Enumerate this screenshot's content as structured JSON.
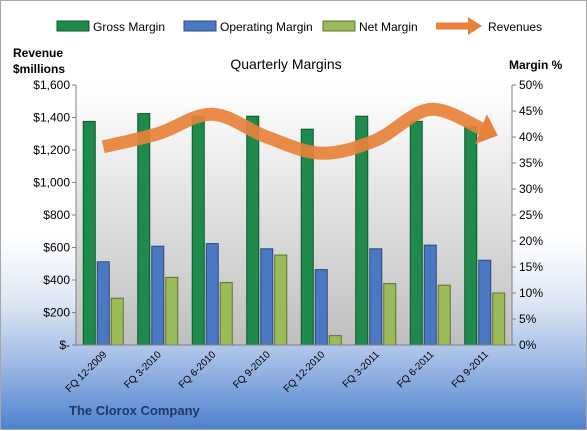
{
  "company": "The Clorox Company",
  "chart_data": {
    "type": "bar",
    "title": "Quarterly Margins",
    "left_axis_label": [
      "Revenue",
      "$millions"
    ],
    "right_axis_label": "Margin %",
    "categories": [
      "FQ 12-2009",
      "FQ 3-2010",
      "FQ 6-2010",
      "FQ 9-2010",
      "FQ 12-2010",
      "FQ 3-2011",
      "FQ 6-2011",
      "FQ 9-2011"
    ],
    "left_ticks": [
      "$-",
      "$200",
      "$400",
      "$600",
      "$800",
      "$1,000",
      "$1,200",
      "$1,400",
      "$1,600"
    ],
    "right_ticks": [
      "0%",
      "5%",
      "10%",
      "15%",
      "20%",
      "25%",
      "30%",
      "35%",
      "40%",
      "45%",
      "50%"
    ],
    "ylim_left": [
      0,
      1600
    ],
    "ylim_right": [
      0,
      50
    ],
    "bar_series": [
      {
        "name": "Gross Margin",
        "color": "#1e8a4c",
        "values": [
          43,
          44.5,
          44,
          44,
          41.5,
          44,
          43,
          42
        ]
      },
      {
        "name": "Operating Margin",
        "color": "#4a78c2",
        "values": [
          16,
          19,
          19.5,
          18.5,
          14.5,
          18.5,
          19.2,
          16.3
        ]
      },
      {
        "name": "Net Margin",
        "color": "#9bbb59",
        "values": [
          9,
          13,
          12,
          17.3,
          1.8,
          11.8,
          11.5,
          10
        ]
      }
    ],
    "line_series": {
      "name": "Revenues",
      "color": "#e8823a",
      "values": [
        1220,
        1300,
        1420,
        1280,
        1180,
        1260,
        1450,
        1320
      ]
    },
    "legend_position": "top",
    "grid": false
  }
}
